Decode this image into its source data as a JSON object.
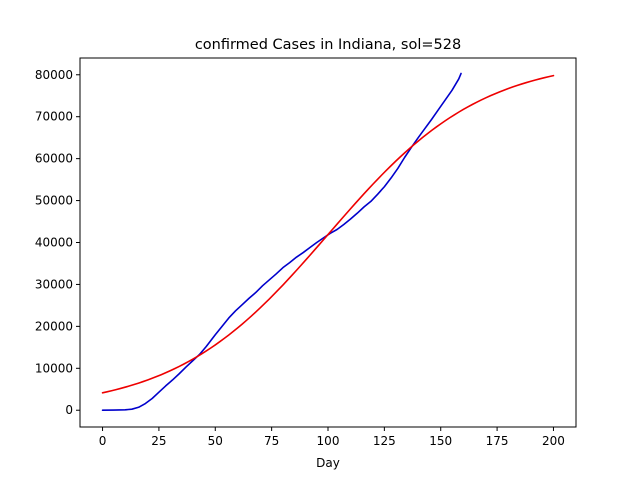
{
  "chart_data": {
    "type": "line",
    "title": "confirmed Cases in Indiana, sol=528",
    "xlabel": "Day",
    "ylabel": "",
    "xlim": [
      -10,
      210
    ],
    "ylim": [
      -4000,
      84000
    ],
    "xticks": [
      0,
      25,
      50,
      75,
      100,
      125,
      150,
      175,
      200
    ],
    "yticks": [
      0,
      10000,
      20000,
      30000,
      40000,
      50000,
      60000,
      70000,
      80000
    ],
    "grid": false,
    "legend": "none",
    "series": [
      {
        "color": "#0000cc",
        "x": [
          0,
          5,
          10,
          13,
          16,
          19,
          22,
          25,
          28,
          31,
          34,
          37,
          40,
          43,
          46,
          50,
          53,
          56,
          59,
          62,
          65,
          68,
          71,
          74,
          77,
          80,
          83,
          86,
          89,
          92,
          95,
          98,
          101,
          104,
          107,
          110,
          113,
          116,
          119,
          122,
          125,
          128,
          131,
          134,
          137,
          140,
          143,
          146,
          149,
          152,
          155,
          158,
          159
        ],
        "y": [
          0,
          50,
          100,
          250,
          700,
          1600,
          2800,
          4300,
          5800,
          7200,
          8700,
          10300,
          11800,
          13300,
          15200,
          18000,
          20000,
          22000,
          23700,
          25200,
          26700,
          28100,
          29700,
          31100,
          32500,
          34000,
          35200,
          36500,
          37600,
          38800,
          40000,
          41100,
          42200,
          43100,
          44300,
          45600,
          47000,
          48500,
          49800,
          51500,
          53300,
          55400,
          57700,
          60300,
          62700,
          65000,
          67200,
          69400,
          71700,
          74000,
          76300,
          79000,
          80300
        ]
      },
      {
        "color": "#ee0000",
        "model": "logistic",
        "params": {
          "K": 84000,
          "a": 19.2,
          "b": 0.0295
        },
        "x_range": [
          0,
          200
        ]
      }
    ]
  }
}
